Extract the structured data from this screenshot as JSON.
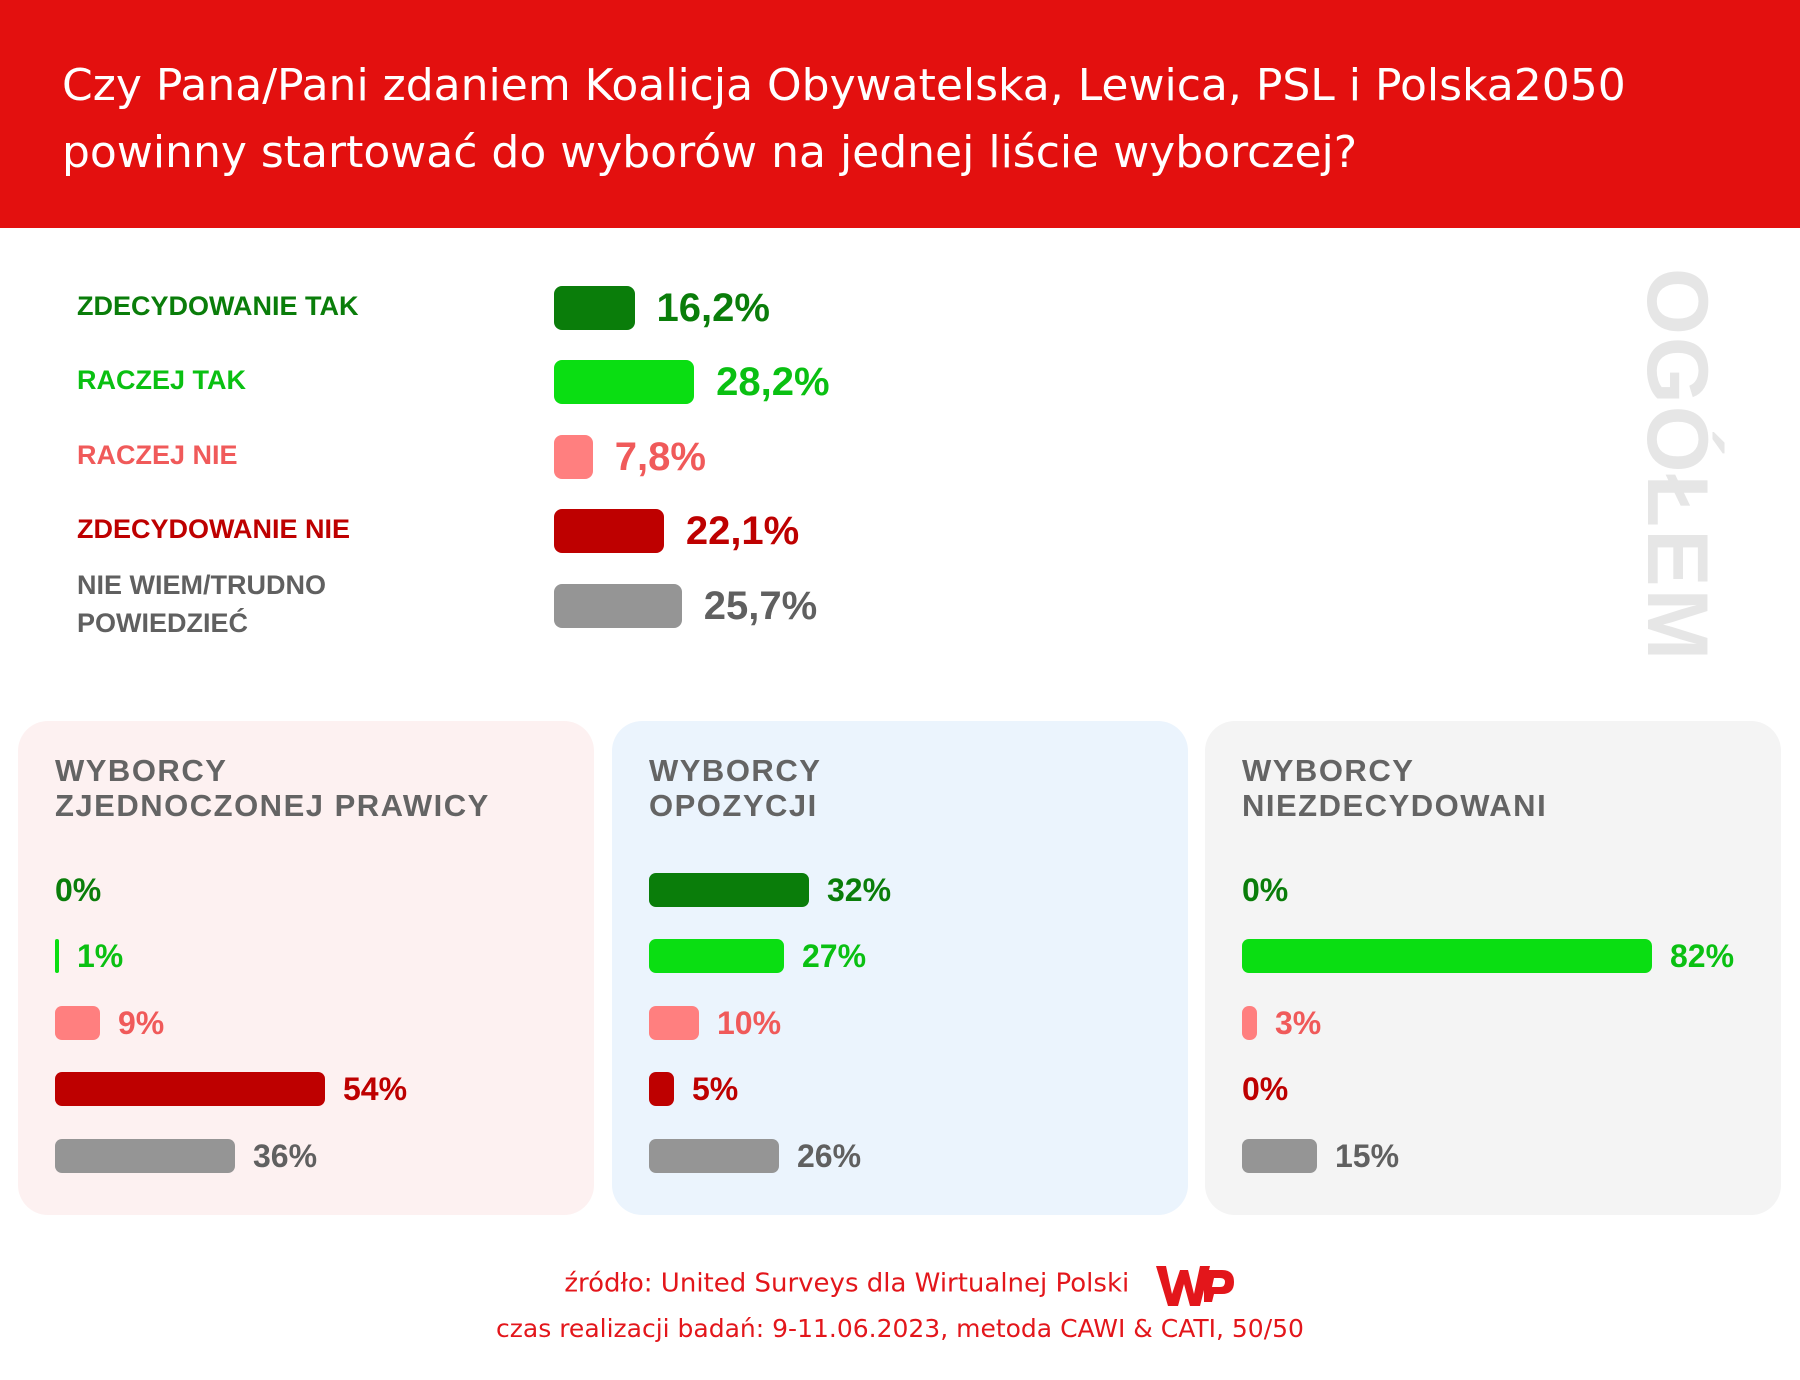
{
  "header": {
    "title_line1": "Czy Pana/Pani zdaniem Koalicja Obywatelska, Lewica, PSL i Polska2050",
    "title_line2": "powinny startować do wyborów na jednej liście wyborczej?"
  },
  "side_label": "OGÓŁEM",
  "colors": {
    "header_red": "#e3100f",
    "zdecydowanie_tak": "#0a7d0a",
    "raczej_tak": "#0ade12",
    "raczej_nie": "#ff7f7f",
    "zdecydowanie_nie": "#be0000",
    "nie_wiem": "#959595"
  },
  "chart_data": [
    {
      "type": "bar",
      "orientation": "horizontal",
      "side_label": "OGÓŁEM",
      "categories": [
        "ZDECYDOWANIE TAK",
        "RACZEJ TAK",
        "RACZEJ NIE",
        "ZDECYDOWANIE NIE",
        "NIE WIEM/TRUDNO POWIEDZIEĆ"
      ],
      "values": [
        16.2,
        28.2,
        7.8,
        22.1,
        25.7
      ],
      "value_labels": [
        "16,2%",
        "28,2%",
        "7,8%",
        "22,1%",
        "25,7%"
      ],
      "bar_colors": [
        "#0a7d0a",
        "#0ade12",
        "#ff7f7f",
        "#be0000",
        "#959595"
      ],
      "label_colors": [
        "#0a7d0a",
        "#0ac012",
        "#f05a5a",
        "#be0000",
        "#606060"
      ]
    },
    {
      "type": "bar",
      "orientation": "horizontal",
      "title": "WYBORCY\nZJEDNOCZONEJ PRAWICY",
      "background": "#fdf1f1",
      "values": [
        0,
        1,
        9,
        54,
        36
      ],
      "value_labels": [
        "0%",
        "1%",
        "9%",
        "54%",
        "36%"
      ]
    },
    {
      "type": "bar",
      "orientation": "horizontal",
      "title": "WYBORCY\nOPOZYCJI",
      "background": "#ebf4fd",
      "values": [
        32,
        27,
        10,
        5,
        26
      ],
      "value_labels": [
        "32%",
        "27%",
        "10%",
        "5%",
        "26%"
      ]
    },
    {
      "type": "bar",
      "orientation": "horizontal",
      "title": "WYBORCY\nNIEZDECYDOWANI",
      "background": "#f4f4f4",
      "values": [
        0,
        82,
        3,
        0,
        15
      ],
      "value_labels": [
        "0%",
        "82%",
        "3%",
        "0%",
        "15%"
      ]
    }
  ],
  "footer": {
    "source": "źródło: United Surveys dla Wirtualnej Polski",
    "method": "czas realizacji badań: 9-11.06.2023, metoda CAWI & CATI, 50/50",
    "logo_text": "WP"
  }
}
